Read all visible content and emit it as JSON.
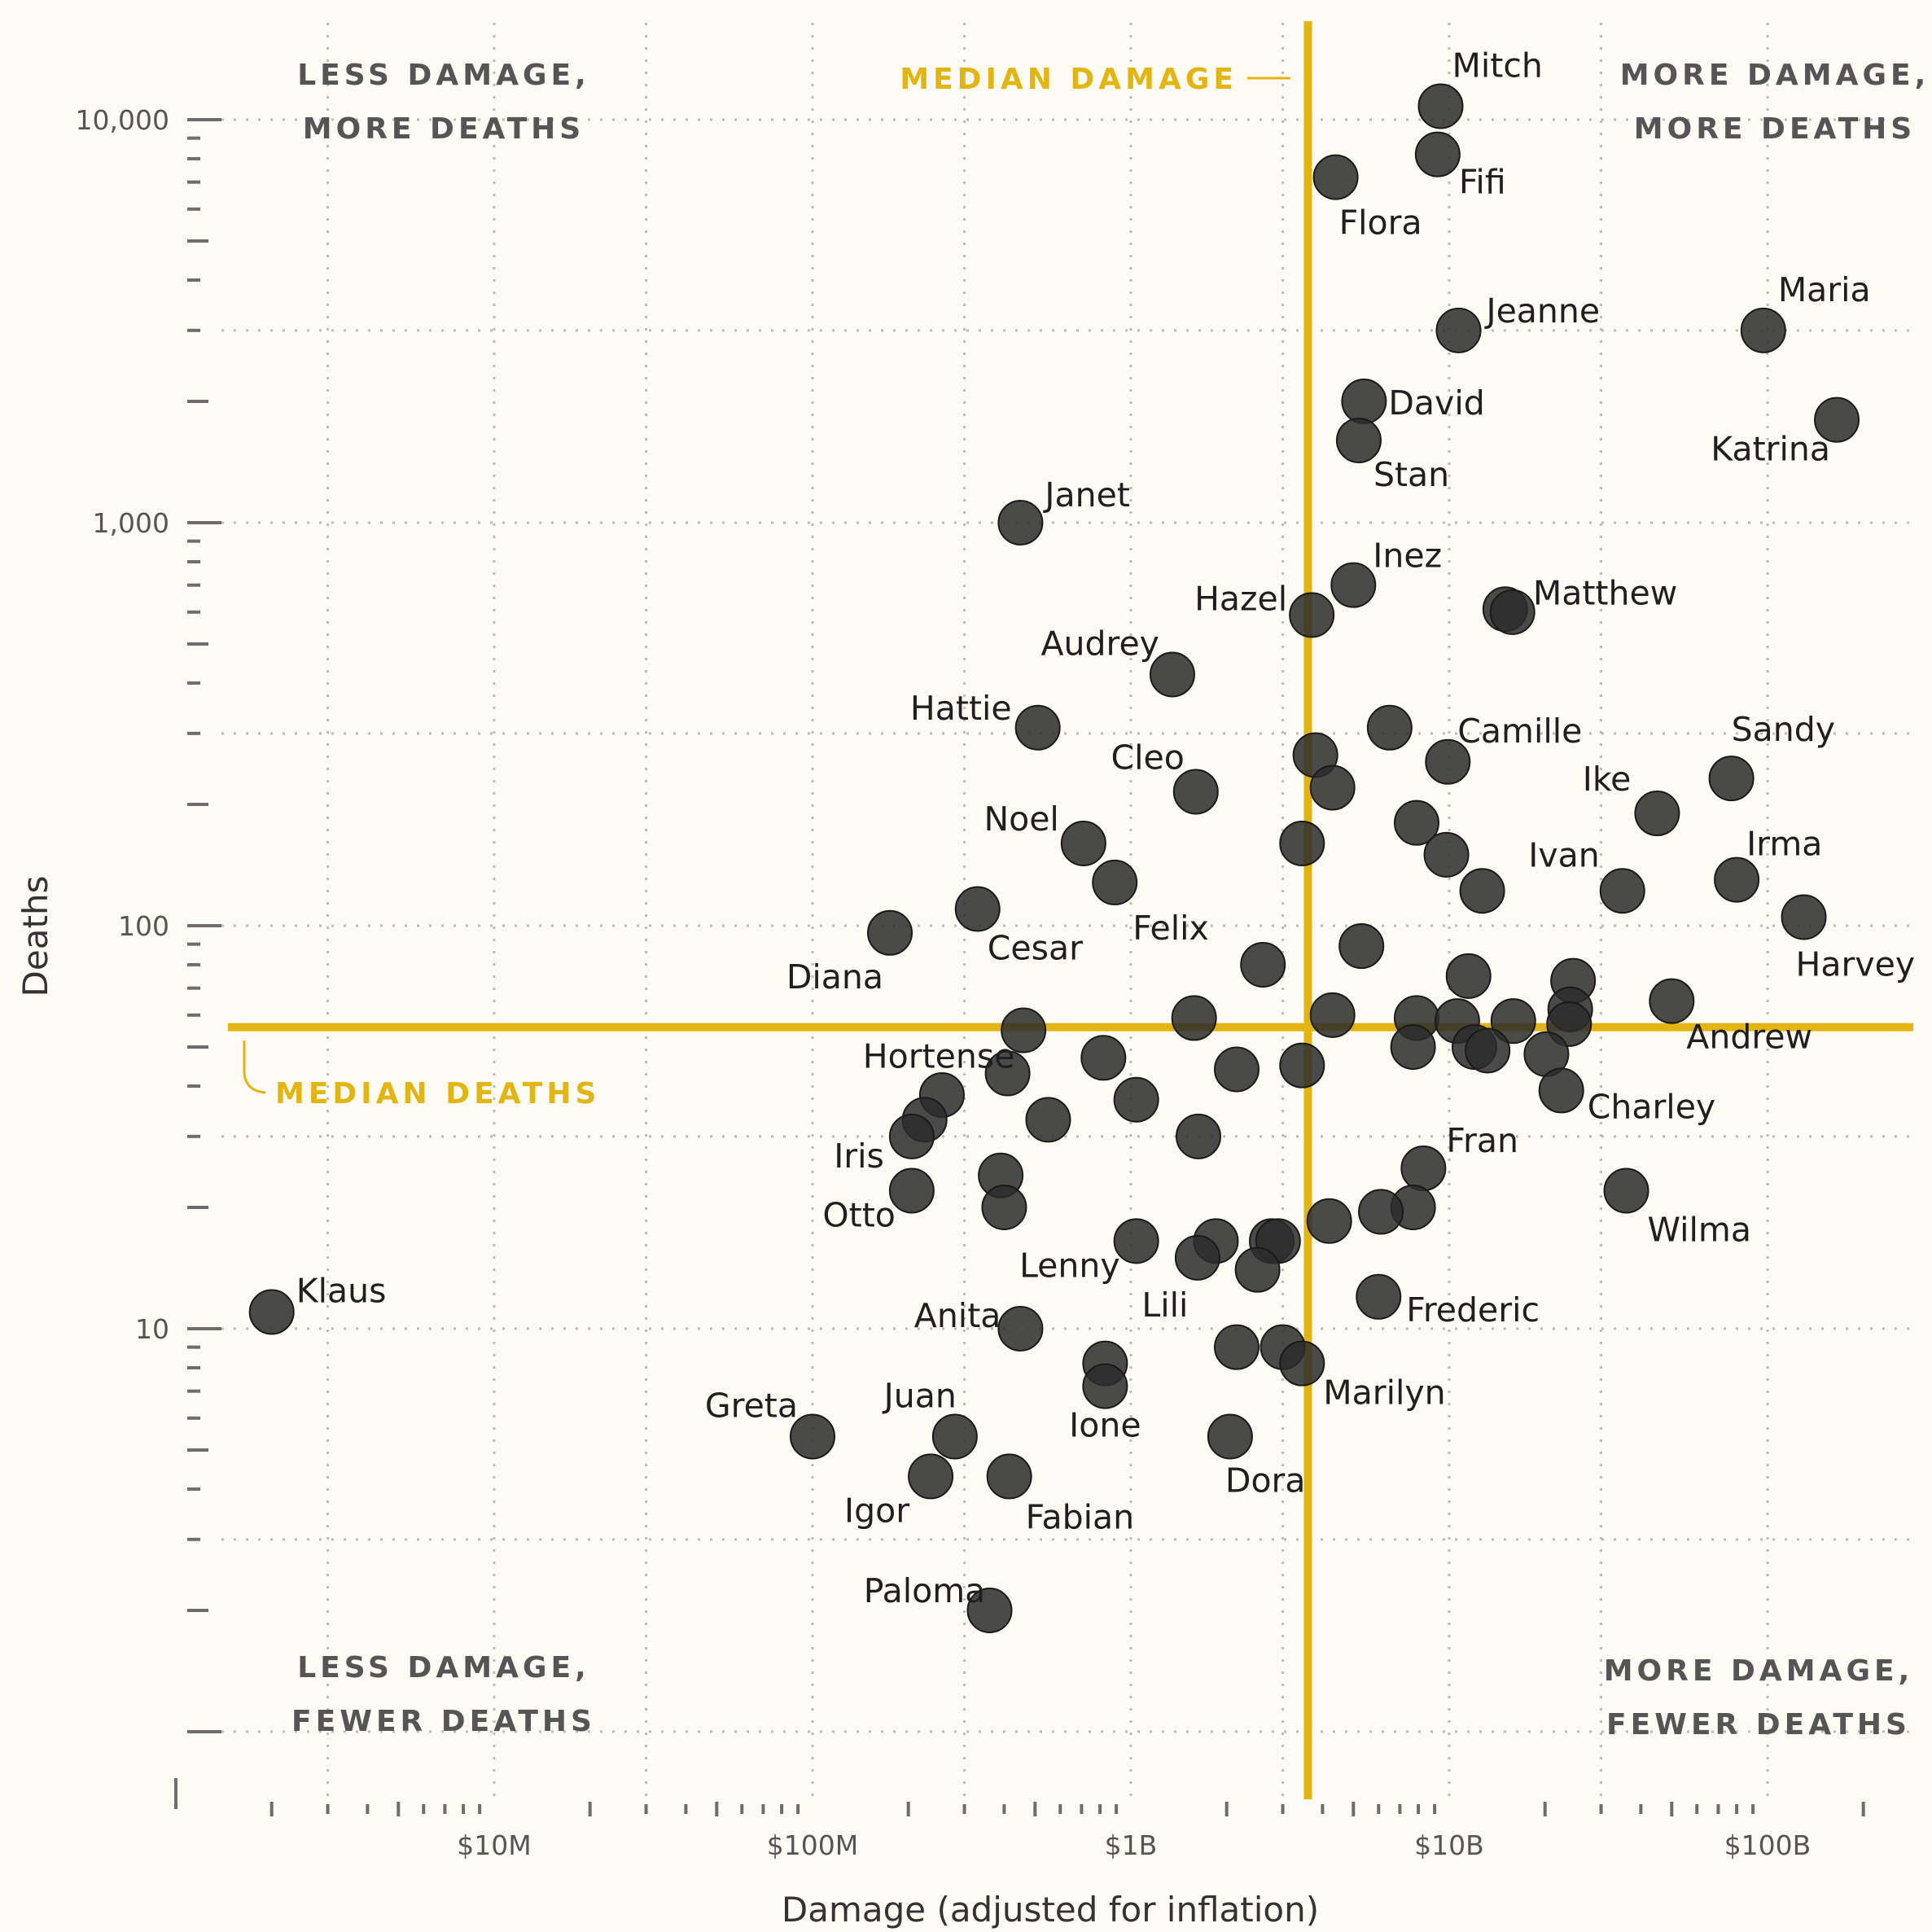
{
  "chart_data": {
    "type": "scatter",
    "xlabel": "Damage (adjusted for inflation)",
    "ylabel": "Deaths",
    "x_scale": "log",
    "y_scale": "log",
    "xlim": [
      1000000,
      300000000000
    ],
    "ylim": [
      1,
      18000
    ],
    "x_ticks": [
      {
        "value": 10000000,
        "label": "$10M"
      },
      {
        "value": 100000000,
        "label": "$100M"
      },
      {
        "value": 1000000000,
        "label": "$1B"
      },
      {
        "value": 10000000000,
        "label": "$10B"
      },
      {
        "value": 100000000000,
        "label": "$100B"
      }
    ],
    "y_ticks": [
      {
        "value": 10,
        "label": "10"
      },
      {
        "value": 100,
        "label": "100"
      },
      {
        "value": 1000,
        "label": "1,000"
      },
      {
        "value": 10000,
        "label": "10,000"
      }
    ],
    "grid": true,
    "median_damage": 3600000000,
    "median_deaths": 56,
    "median_damage_label": "MEDIAN DAMAGE",
    "median_deaths_label": "MEDIAN DEATHS",
    "quadrant_labels": {
      "top_left": [
        "LESS DAMAGE,",
        "MORE DEATHS"
      ],
      "top_right": [
        "MORE DAMAGE,",
        "MORE DEATHS"
      ],
      "bottom_left": [
        "LESS DAMAGE,",
        "FEWER DEATHS"
      ],
      "bottom_right": [
        "MORE DAMAGE,",
        "FEWER DEATHS"
      ]
    },
    "points": [
      {
        "name": "Mitch",
        "x": 9400000000,
        "y": 10800
      },
      {
        "name": "Fifi",
        "x": 9200000000,
        "y": 8200
      },
      {
        "name": "Flora",
        "x": 4400000000,
        "y": 7200
      },
      {
        "name": "Jeanne",
        "x": 10700000000,
        "y": 3000
      },
      {
        "name": "Maria",
        "x": 97000000000,
        "y": 3000
      },
      {
        "name": "Katrina",
        "x": 165000000000,
        "y": 1800
      },
      {
        "name": "David",
        "x": 5400000000,
        "y": 2000
      },
      {
        "name": "Stan",
        "x": 5200000000,
        "y": 1600
      },
      {
        "name": "Janet",
        "x": 450000000,
        "y": 1000
      },
      {
        "name": "Inez",
        "x": 5000000000,
        "y": 700
      },
      {
        "name": "Hazel",
        "x": 3700000000,
        "y": 590
      },
      {
        "name": "Matthew",
        "x": 15000000000,
        "y": 610
      },
      {
        "name": "",
        "x": 15800000000,
        "y": 600
      },
      {
        "name": "Audrey",
        "x": 1350000000,
        "y": 420
      },
      {
        "name": "Hattie",
        "x": 510000000,
        "y": 310
      },
      {
        "name": "",
        "x": 6500000000,
        "y": 310
      },
      {
        "name": "Camille",
        "x": 9900000000,
        "y": 255
      },
      {
        "name": "",
        "x": 3800000000,
        "y": 265
      },
      {
        "name": "",
        "x": 4300000000,
        "y": 220
      },
      {
        "name": "Cleo",
        "x": 1600000000,
        "y": 215
      },
      {
        "name": "Sandy",
        "x": 77000000000,
        "y": 232
      },
      {
        "name": "Ike",
        "x": 45000000000,
        "y": 190
      },
      {
        "name": "",
        "x": 7900000000,
        "y": 180
      },
      {
        "name": "Noel",
        "x": 710000000,
        "y": 160
      },
      {
        "name": "",
        "x": 3450000000,
        "y": 160
      },
      {
        "name": "",
        "x": 9800000000,
        "y": 150
      },
      {
        "name": "Irma",
        "x": 80000000000,
        "y": 130
      },
      {
        "name": "Felix",
        "x": 890000000,
        "y": 128
      },
      {
        "name": "",
        "x": 12700000000,
        "y": 122
      },
      {
        "name": "Ivan",
        "x": 35000000000,
        "y": 122
      },
      {
        "name": "Cesar",
        "x": 330000000,
        "y": 110
      },
      {
        "name": "Harvey",
        "x": 130000000000,
        "y": 105
      },
      {
        "name": "Diana",
        "x": 175000000,
        "y": 96
      },
      {
        "name": "",
        "x": 5300000000,
        "y": 89
      },
      {
        "name": "",
        "x": 2600000000,
        "y": 80
      },
      {
        "name": "",
        "x": 11500000000,
        "y": 75
      },
      {
        "name": "",
        "x": 24500000000,
        "y": 73
      },
      {
        "name": "Andrew",
        "x": 50000000000,
        "y": 65
      },
      {
        "name": "",
        "x": 24000000000,
        "y": 62
      },
      {
        "name": "",
        "x": 4300000000,
        "y": 60
      },
      {
        "name": "",
        "x": 1580000000,
        "y": 59
      },
      {
        "name": "",
        "x": 7900000000,
        "y": 59
      },
      {
        "name": "",
        "x": 10600000000,
        "y": 58
      },
      {
        "name": "",
        "x": 15900000000,
        "y": 58
      },
      {
        "name": "",
        "x": 23800000000,
        "y": 57
      },
      {
        "name": "Hortense",
        "x": 460000000,
        "y": 55
      },
      {
        "name": "",
        "x": 7700000000,
        "y": 50
      },
      {
        "name": "",
        "x": 12000000000,
        "y": 50
      },
      {
        "name": "",
        "x": 13200000000,
        "y": 49
      },
      {
        "name": "",
        "x": 20200000000,
        "y": 48
      },
      {
        "name": "",
        "x": 820000000,
        "y": 47
      },
      {
        "name": "",
        "x": 3450000000,
        "y": 45
      },
      {
        "name": "",
        "x": 2150000000,
        "y": 44
      },
      {
        "name": "",
        "x": 410000000,
        "y": 43
      },
      {
        "name": "Charley",
        "x": 22500000000,
        "y": 39
      },
      {
        "name": "",
        "x": 255000000,
        "y": 38
      },
      {
        "name": "",
        "x": 1040000000,
        "y": 37
      },
      {
        "name": "",
        "x": 225000000,
        "y": 33
      },
      {
        "name": "",
        "x": 550000000,
        "y": 33
      },
      {
        "name": "Iris",
        "x": 205000000,
        "y": 30
      },
      {
        "name": "",
        "x": 1630000000,
        "y": 30
      },
      {
        "name": "Fran",
        "x": 8300000000,
        "y": 25
      },
      {
        "name": "",
        "x": 390000000,
        "y": 24
      },
      {
        "name": "Otto",
        "x": 205000000,
        "y": 22
      },
      {
        "name": "Wilma",
        "x": 36000000000,
        "y": 22
      },
      {
        "name": "",
        "x": 400000000,
        "y": 20
      },
      {
        "name": "",
        "x": 7700000000,
        "y": 20
      },
      {
        "name": "",
        "x": 6100000000,
        "y": 19.5
      },
      {
        "name": "",
        "x": 4200000000,
        "y": 18.5
      },
      {
        "name": "Lenny",
        "x": 1040000000,
        "y": 16.5
      },
      {
        "name": "",
        "x": 1850000000,
        "y": 16.5
      },
      {
        "name": "",
        "x": 2770000000,
        "y": 16.5
      },
      {
        "name": "",
        "x": 2900000000,
        "y": 16.5
      },
      {
        "name": "Lili",
        "x": 1620000000,
        "y": 15
      },
      {
        "name": "",
        "x": 2500000000,
        "y": 14
      },
      {
        "name": "Klaus",
        "x": 2000000,
        "y": 11
      },
      {
        "name": "Frederic",
        "x": 6000000000,
        "y": 12
      },
      {
        "name": "Anita",
        "x": 450000000,
        "y": 10
      },
      {
        "name": "",
        "x": 2150000000,
        "y": 9
      },
      {
        "name": "",
        "x": 3000000000,
        "y": 9
      },
      {
        "name": "Marilyn",
        "x": 3450000000,
        "y": 8.2
      },
      {
        "name": "",
        "x": 830000000,
        "y": 8.2
      },
      {
        "name": "Ione",
        "x": 830000000,
        "y": 7.2
      },
      {
        "name": "Greta",
        "x": 100000000,
        "y": 5.4
      },
      {
        "name": "Juan",
        "x": 280000000,
        "y": 5.4
      },
      {
        "name": "Dora",
        "x": 2050000000,
        "y": 5.4
      },
      {
        "name": "Igor",
        "x": 235000000,
        "y": 4.3
      },
      {
        "name": "Fabian",
        "x": 415000000,
        "y": 4.3
      },
      {
        "name": "Paloma",
        "x": 360000000,
        "y": 2
      }
    ]
  }
}
